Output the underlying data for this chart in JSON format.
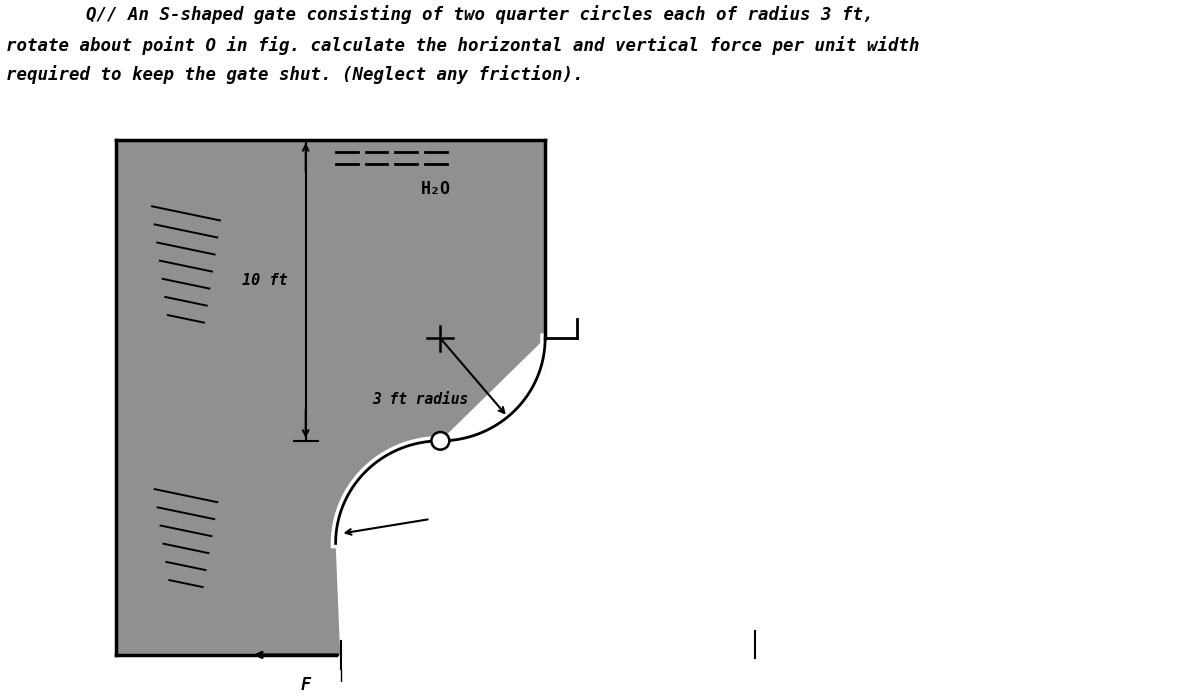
{
  "title_line1": "Q// An S-shaped gate consisting of two quarter circles each of radius 3 ft,",
  "title_line2": "rotate about point O in fig. calculate the horizontal and vertical force per unit width",
  "title_line3": "required to keep the gate shut. (Neglect any friction).",
  "bg_color": "#909090",
  "text_color": "black",
  "water_label": "H₂O",
  "dimension_label": "10 ft",
  "radius_label": "3 ft radius",
  "force_label": "F",
  "fig_width": 12.0,
  "fig_height": 6.97
}
